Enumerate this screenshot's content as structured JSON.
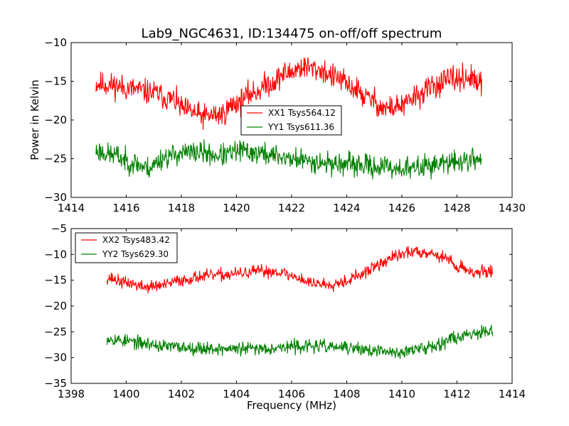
{
  "chart_data": [
    {
      "type": "line",
      "title": "Lab9_NGC4631, ID:134475 on-off/off spectrum",
      "xlabel": "",
      "ylabel": "Power in Kelvin",
      "xlim": [
        1414,
        1430
      ],
      "ylim": [
        -30,
        -10
      ],
      "xticks": [
        1414,
        1416,
        1418,
        1420,
        1422,
        1424,
        1426,
        1428,
        1430
      ],
      "yticks": [
        -30,
        -25,
        -20,
        -15,
        -10
      ],
      "x_range": [
        1414.9,
        1428.9
      ],
      "legend_position": "center",
      "series": [
        {
          "name": "XX1 Tsys564.12",
          "color": "#ff0000",
          "noise": 1.0,
          "seed": 11,
          "x": [
            1414.9,
            1415.5,
            1416.2,
            1417.0,
            1417.6,
            1418.2,
            1418.8,
            1419.4,
            1420.0,
            1420.6,
            1421.2,
            1421.8,
            1422.4,
            1423.0,
            1423.6,
            1424.2,
            1424.8,
            1425.4,
            1426.0,
            1426.6,
            1427.2,
            1427.8,
            1428.4,
            1428.9
          ],
          "y": [
            -15.3,
            -15.5,
            -16.0,
            -16.5,
            -17.3,
            -18.8,
            -19.5,
            -19.3,
            -17.8,
            -16.5,
            -15.3,
            -14.0,
            -13.2,
            -13.5,
            -14.5,
            -15.8,
            -17.2,
            -18.5,
            -18.2,
            -16.8,
            -15.5,
            -14.8,
            -14.5,
            -15.5
          ]
        },
        {
          "name": "YY1 Tsys611.36",
          "color": "#008000",
          "noise": 0.9,
          "seed": 23,
          "x": [
            1414.9,
            1415.5,
            1416.2,
            1416.8,
            1417.4,
            1418.0,
            1418.6,
            1419.4,
            1420.2,
            1420.8,
            1421.4,
            1422.0,
            1422.6,
            1423.4,
            1424.2,
            1425.0,
            1425.8,
            1426.4,
            1427.0,
            1427.6,
            1428.2,
            1428.9
          ],
          "y": [
            -24.0,
            -24.5,
            -25.5,
            -26.2,
            -24.8,
            -24.3,
            -24.2,
            -24.6,
            -24.0,
            -24.3,
            -24.6,
            -25.0,
            -25.3,
            -25.6,
            -25.8,
            -26.0,
            -26.2,
            -26.3,
            -25.8,
            -25.6,
            -25.3,
            -25.0
          ]
        }
      ]
    },
    {
      "type": "line",
      "title": "",
      "xlabel": "Frequency (MHz)",
      "ylabel": "",
      "xlim": [
        1398,
        1414
      ],
      "ylim": [
        -35,
        -5
      ],
      "xticks": [
        1398,
        1400,
        1402,
        1404,
        1406,
        1408,
        1410,
        1412,
        1414
      ],
      "yticks": [
        -35,
        -30,
        -25,
        -20,
        -15,
        -10,
        -5
      ],
      "x_range": [
        1399.3,
        1413.3
      ],
      "legend_position": "upper left",
      "series": [
        {
          "name": "XX2 Tsys483.42",
          "color": "#ff0000",
          "noise": 0.75,
          "seed": 37,
          "x": [
            1399.3,
            1400.0,
            1400.7,
            1401.3,
            1402.0,
            1402.7,
            1403.4,
            1404.1,
            1404.8,
            1405.5,
            1406.1,
            1406.7,
            1407.3,
            1407.9,
            1408.5,
            1409.1,
            1409.7,
            1410.3,
            1410.9,
            1411.5,
            1412.1,
            1412.7,
            1413.3
          ],
          "y": [
            -14.5,
            -15.5,
            -16.3,
            -16.0,
            -15.0,
            -14.3,
            -14.0,
            -13.7,
            -13.3,
            -13.3,
            -14.3,
            -15.5,
            -15.8,
            -15.2,
            -14.0,
            -12.2,
            -10.5,
            -9.5,
            -9.5,
            -10.5,
            -12.5,
            -13.5,
            -13.3
          ]
        },
        {
          "name": "YY2 Tsys629.30",
          "color": "#008000",
          "noise": 0.8,
          "seed": 53,
          "x": [
            1399.3,
            1400.0,
            1400.7,
            1401.4,
            1402.1,
            1402.8,
            1403.5,
            1404.2,
            1404.9,
            1405.6,
            1406.3,
            1407.0,
            1407.7,
            1408.4,
            1409.1,
            1409.8,
            1410.5,
            1411.2,
            1411.9,
            1412.6,
            1413.3
          ],
          "y": [
            -26.2,
            -26.8,
            -27.3,
            -27.8,
            -28.0,
            -28.2,
            -28.3,
            -28.3,
            -28.2,
            -28.0,
            -27.8,
            -27.8,
            -28.0,
            -28.3,
            -28.8,
            -29.0,
            -28.5,
            -27.5,
            -26.2,
            -25.2,
            -24.5
          ]
        }
      ]
    }
  ]
}
